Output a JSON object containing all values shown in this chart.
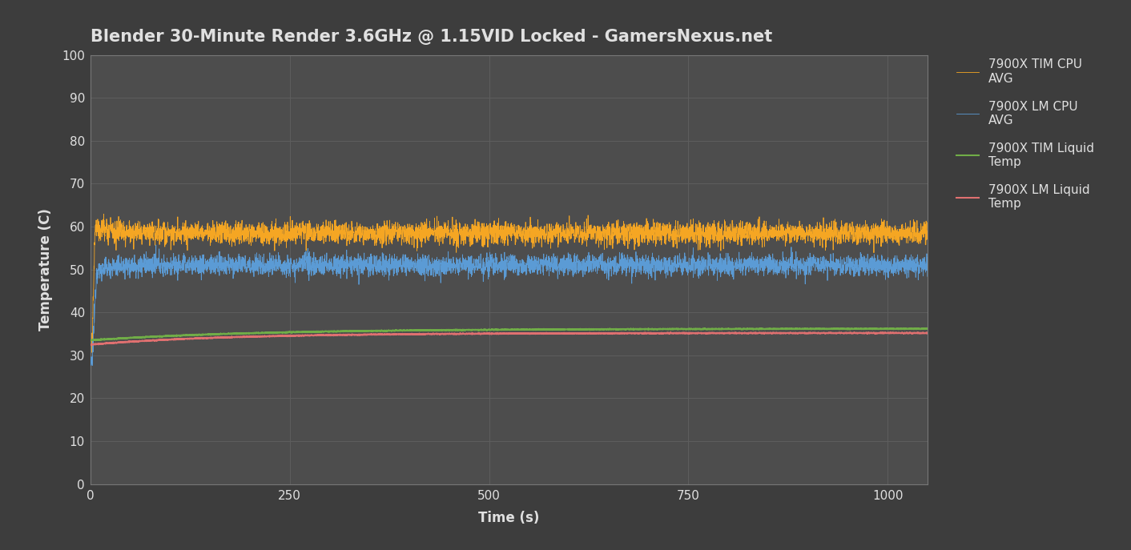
{
  "title": "Blender 30-Minute Render 3.6GHz @ 1.15VID Locked - GamersNexus.net",
  "xlabel": "Time (s)",
  "ylabel": "Temperature (C)",
  "xlim": [
    0,
    1050
  ],
  "ylim": [
    0,
    100
  ],
  "yticks": [
    0,
    10,
    20,
    30,
    40,
    50,
    60,
    70,
    80,
    90,
    100
  ],
  "xticks": [
    0,
    250,
    500,
    750,
    1000
  ],
  "background_color": "#3d3d3d",
  "plot_bg_color": "#4d4d4d",
  "grid_color": "#5e5e5e",
  "text_color": "#e0e0e0",
  "title_fontsize": 15,
  "axis_label_fontsize": 12,
  "tick_fontsize": 11,
  "legend_fontsize": 11,
  "lm_cpu_color": "#5b9bd5",
  "lm_liquid_color": "#e07070",
  "tim_cpu_color": "#f5a623",
  "tim_liquid_color": "#70ad47",
  "lm_cpu_label": "7900X LM CPU\nAVG",
  "lm_liquid_label": "7900X LM Liquid\nTemp",
  "tim_cpu_label": "7900X TIM CPU\nAVG",
  "tim_liquid_label": "7900X TIM Liquid\nTemp",
  "lm_cpu_steady": 51.0,
  "lm_cpu_noise": 1.2,
  "tim_cpu_steady": 58.5,
  "tim_cpu_noise": 1.3,
  "lm_liquid_start": 32.5,
  "lm_liquid_steady": 35.2,
  "tim_liquid_start": 33.5,
  "tim_liquid_steady": 36.2
}
